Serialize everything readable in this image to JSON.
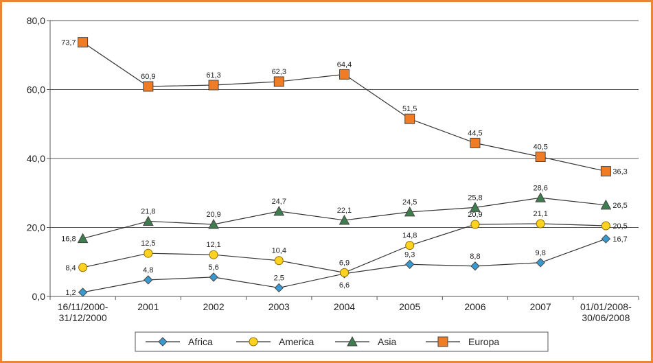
{
  "chart_data": {
    "type": "line",
    "categories": [
      "16/11/2000-31/12/2000",
      "2001",
      "2002",
      "2003",
      "2004",
      "2005",
      "2006",
      "2007",
      "01/01/2008-30/06/2008"
    ],
    "series": [
      {
        "name": "Africa",
        "color": "#3a9ad0",
        "marker": "diamond",
        "values": [
          1.2,
          4.8,
          5.6,
          2.5,
          6.6,
          9.3,
          8.8,
          9.8,
          16.7
        ],
        "value_labels": [
          "1,2",
          "4,8",
          "5,6",
          "2,5",
          "6,6",
          "9,3",
          "8,8",
          "9,8",
          "16,7"
        ]
      },
      {
        "name": "America",
        "color": "#ffd21f",
        "marker": "circle",
        "values": [
          8.4,
          12.5,
          12.1,
          10.4,
          6.9,
          14.8,
          20.9,
          21.1,
          20.5
        ],
        "value_labels": [
          "8,4",
          "12,5",
          "12,1",
          "10,4",
          "6,9",
          "14,8",
          "20,9",
          "21,1",
          "20,5"
        ]
      },
      {
        "name": "Asia",
        "color": "#3f7d4e",
        "marker": "triangle",
        "values": [
          16.8,
          21.8,
          20.9,
          24.7,
          22.1,
          24.5,
          25.8,
          28.6,
          26.5
        ],
        "value_labels": [
          "16,8",
          "21,8",
          "20,9",
          "24,7",
          "22,1",
          "24,5",
          "25,8",
          "28,6",
          "26,5"
        ]
      },
      {
        "name": "Europa",
        "color": "#f07d26",
        "marker": "square",
        "values": [
          73.7,
          60.9,
          61.3,
          62.3,
          64.4,
          51.5,
          44.5,
          40.5,
          36.3
        ],
        "value_labels": [
          "73,7",
          "60,9",
          "61,3",
          "62,3",
          "64,4",
          "51,5",
          "44,5",
          "40,5",
          "36,3"
        ]
      }
    ],
    "ylim": [
      0,
      80
    ],
    "yticks": [
      {
        "value": 0,
        "label": "0,0"
      },
      {
        "value": 20,
        "label": "20,0"
      },
      {
        "value": 40,
        "label": "40,0"
      },
      {
        "value": 60,
        "label": "60,0"
      },
      {
        "value": 80,
        "label": "80,0"
      }
    ],
    "grid": true,
    "legend": "bottom"
  }
}
